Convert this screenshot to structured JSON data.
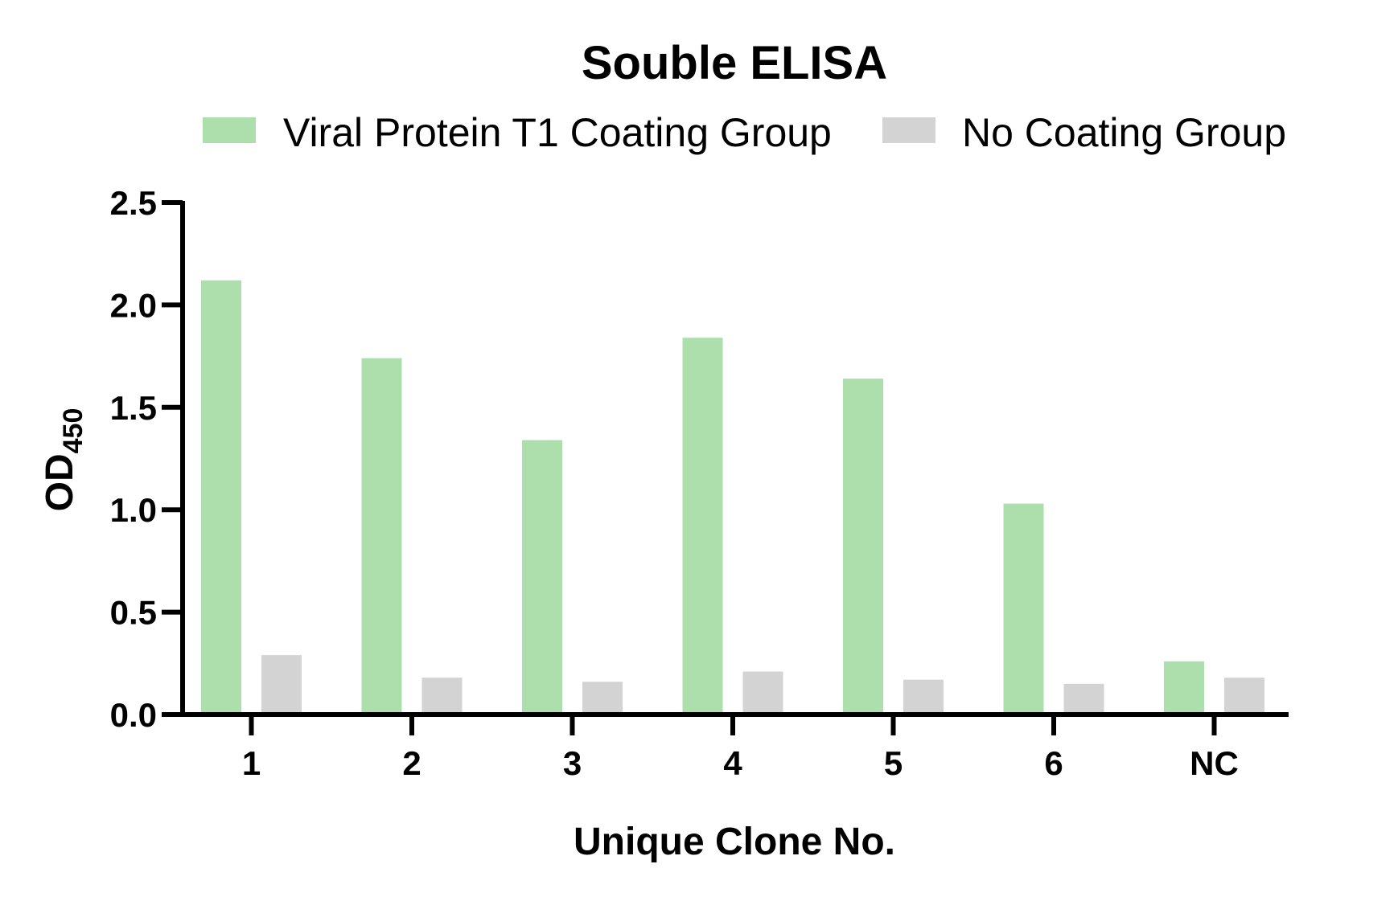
{
  "chart_data": {
    "type": "bar",
    "title": "Souble ELISA",
    "xlabel": "Unique Clone No.",
    "ylabel": "OD",
    "ylabel_subscript": "450",
    "categories": [
      "1",
      "2",
      "3",
      "4",
      "5",
      "6",
      "NC"
    ],
    "series": [
      {
        "name": "Viral Protein T1 Coating Group",
        "color": "#addfad",
        "values": [
          2.12,
          1.74,
          1.34,
          1.84,
          1.64,
          1.03,
          0.26
        ]
      },
      {
        "name": "No Coating Group",
        "color": "#d3d3d3",
        "values": [
          0.29,
          0.18,
          0.16,
          0.21,
          0.17,
          0.15,
          0.18
        ]
      }
    ],
    "ylim": [
      0,
      2.5
    ],
    "yticks": [
      "0.0",
      "0.5",
      "1.0",
      "1.5",
      "2.0",
      "2.5"
    ],
    "grid": false,
    "legend_position": "top"
  }
}
